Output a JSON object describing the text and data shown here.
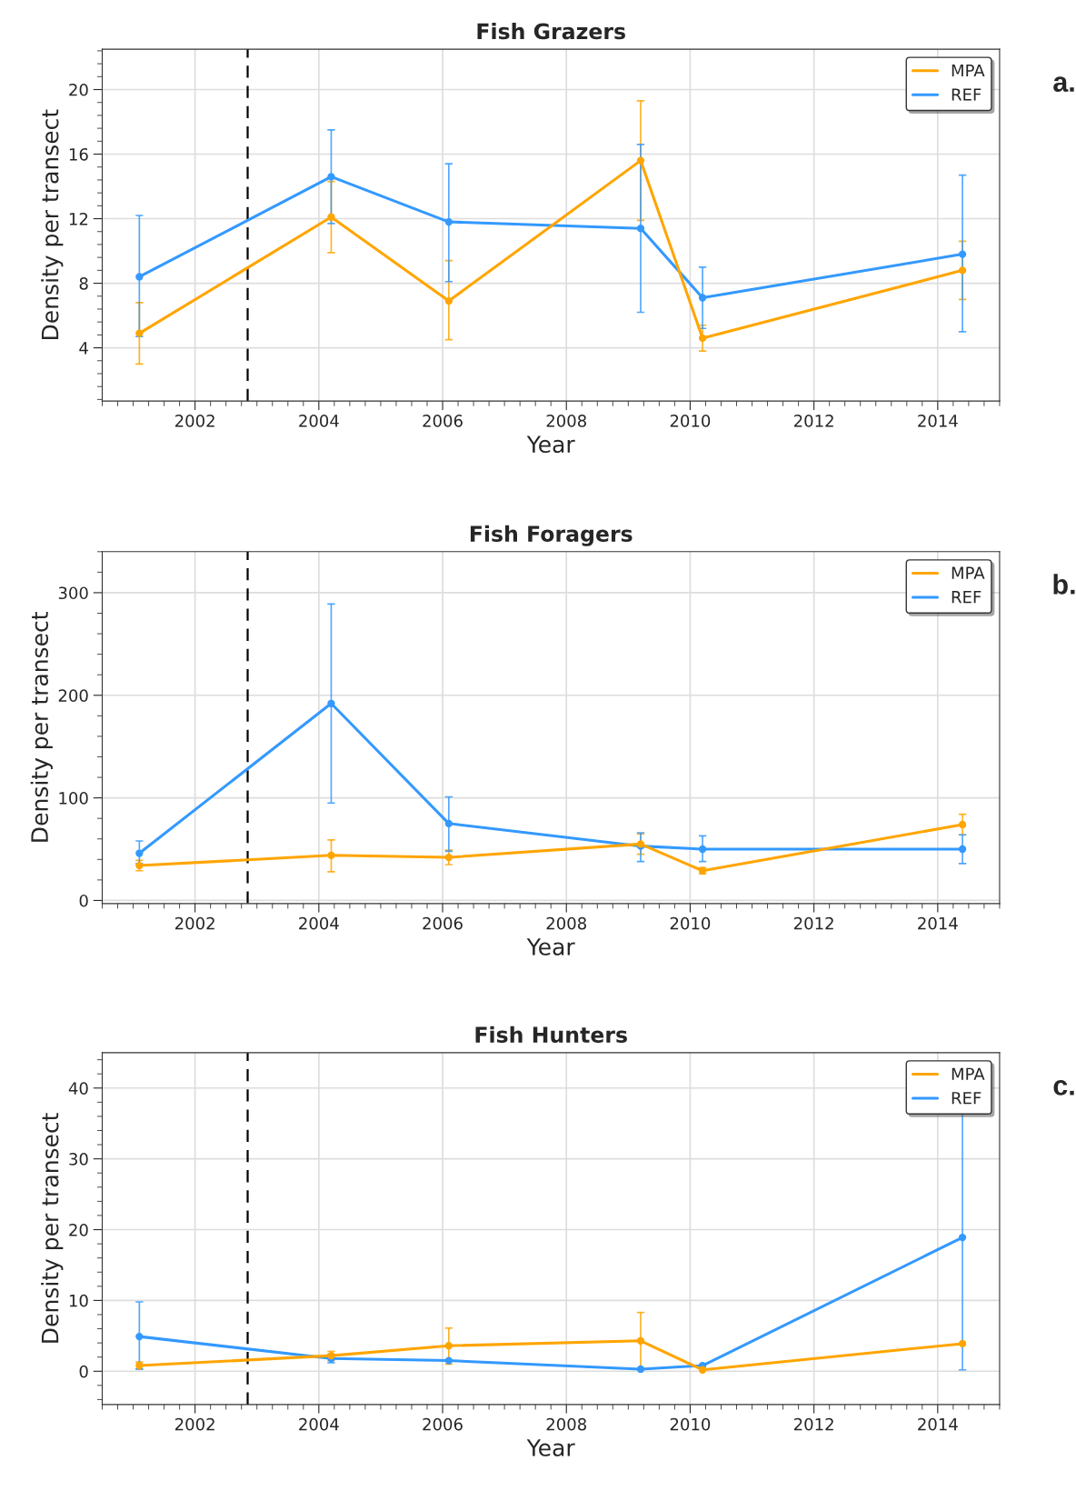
{
  "chart_data": [
    {
      "type": "line",
      "title": "Fish Grazers",
      "xlabel": "Year",
      "ylabel": "Density per transect",
      "annotations": [
        "a."
      ],
      "x": [
        2001.1,
        2004.2,
        2006.1,
        2009.2,
        2010.2,
        2014.4
      ],
      "xlim": [
        2000.5,
        2015.0
      ],
      "xticks": [
        2002,
        2004,
        2006,
        2008,
        2010,
        2012,
        2014
      ],
      "ylim": [
        0.7,
        22.5
      ],
      "yticks": [
        4,
        8,
        12,
        16,
        20
      ],
      "grid": true,
      "legend": "top right",
      "marker": "circle",
      "line_style": "solid",
      "ref_lines": [
        {
          "axis": "x",
          "value": 2002.85,
          "color": "#000000",
          "line_style": "dashed"
        }
      ],
      "series": [
        {
          "name": "MPA",
          "color": "#ffa500",
          "values": [
            4.9,
            12.1,
            6.9,
            15.6,
            4.6,
            8.8
          ],
          "errors": [
            [
              3.0,
              6.8
            ],
            [
              9.9,
              14.3
            ],
            [
              4.5,
              9.4
            ],
            [
              11.9,
              19.3
            ],
            [
              3.8,
              5.4
            ],
            [
              7.0,
              10.6
            ]
          ]
        },
        {
          "name": "REF",
          "color": "#3399ff",
          "values": [
            8.4,
            14.6,
            11.8,
            11.4,
            7.1,
            9.8
          ],
          "errors": [
            [
              4.7,
              12.2
            ],
            [
              11.7,
              17.5
            ],
            [
              8.1,
              15.4
            ],
            [
              6.2,
              16.6
            ],
            [
              5.2,
              9.0
            ],
            [
              5.0,
              14.7
            ]
          ]
        }
      ]
    },
    {
      "type": "line",
      "title": "Fish Foragers",
      "xlabel": "Year",
      "ylabel": "Density per transect",
      "annotations": [
        "b."
      ],
      "x": [
        2001.1,
        2004.2,
        2006.1,
        2009.2,
        2010.2,
        2014.4
      ],
      "xlim": [
        2000.5,
        2015.0
      ],
      "xticks": [
        2002,
        2004,
        2006,
        2008,
        2010,
        2012,
        2014
      ],
      "ylim": [
        -3,
        340
      ],
      "yticks": [
        0,
        100,
        200,
        300
      ],
      "grid": true,
      "legend": "top right",
      "marker": "circle",
      "line_style": "solid",
      "ref_lines": [
        {
          "axis": "x",
          "value": 2002.85,
          "color": "#000000",
          "line_style": "dashed"
        }
      ],
      "series": [
        {
          "name": "MPA",
          "color": "#ffa500",
          "values": [
            34,
            44,
            42,
            55,
            29,
            74
          ],
          "errors": [
            [
              29,
              39
            ],
            [
              28,
              59
            ],
            [
              35,
              49
            ],
            [
              45,
              65
            ],
            [
              26,
              32
            ],
            [
              64,
              84
            ]
          ]
        },
        {
          "name": "REF",
          "color": "#3399ff",
          "values": [
            46,
            192,
            75,
            53,
            50,
            50
          ],
          "errors": [
            [
              36,
              58
            ],
            [
              95,
              289
            ],
            [
              48,
              101
            ],
            [
              38,
              66
            ],
            [
              38,
              63
            ],
            [
              36,
              64
            ]
          ]
        }
      ]
    },
    {
      "type": "line",
      "title": "Fish Hunters",
      "xlabel": "Year",
      "ylabel": "Density per transect",
      "annotations": [
        "c."
      ],
      "x": [
        2001.1,
        2004.2,
        2006.1,
        2009.2,
        2010.2,
        2014.4
      ],
      "xlim": [
        2000.5,
        2015.0
      ],
      "xticks": [
        2002,
        2004,
        2006,
        2008,
        2010,
        2012,
        2014
      ],
      "ylim": [
        -4.7,
        45
      ],
      "yticks": [
        0,
        10,
        20,
        30,
        40
      ],
      "grid": true,
      "legend": "top right",
      "marker": "circle",
      "line_style": "solid",
      "ref_lines": [
        {
          "axis": "x",
          "value": 2002.85,
          "color": "#000000",
          "line_style": "dashed"
        }
      ],
      "series": [
        {
          "name": "MPA",
          "color": "#ffa500",
          "values": [
            0.8,
            2.2,
            3.6,
            4.3,
            0.2,
            3.9
          ],
          "errors": [
            [
              0.3,
              1.3
            ],
            [
              1.5,
              2.8
            ],
            [
              1.0,
              6.1
            ],
            [
              0.3,
              8.3
            ],
            null,
            null
          ]
        },
        {
          "name": "REF",
          "color": "#3399ff",
          "values": [
            4.9,
            1.8,
            1.5,
            0.3,
            0.8,
            18.9
          ],
          "errors": [
            [
              0.3,
              9.8
            ],
            [
              1.2,
              2.4
            ],
            null,
            null,
            null,
            [
              0.2,
              37.6
            ]
          ]
        }
      ]
    }
  ]
}
